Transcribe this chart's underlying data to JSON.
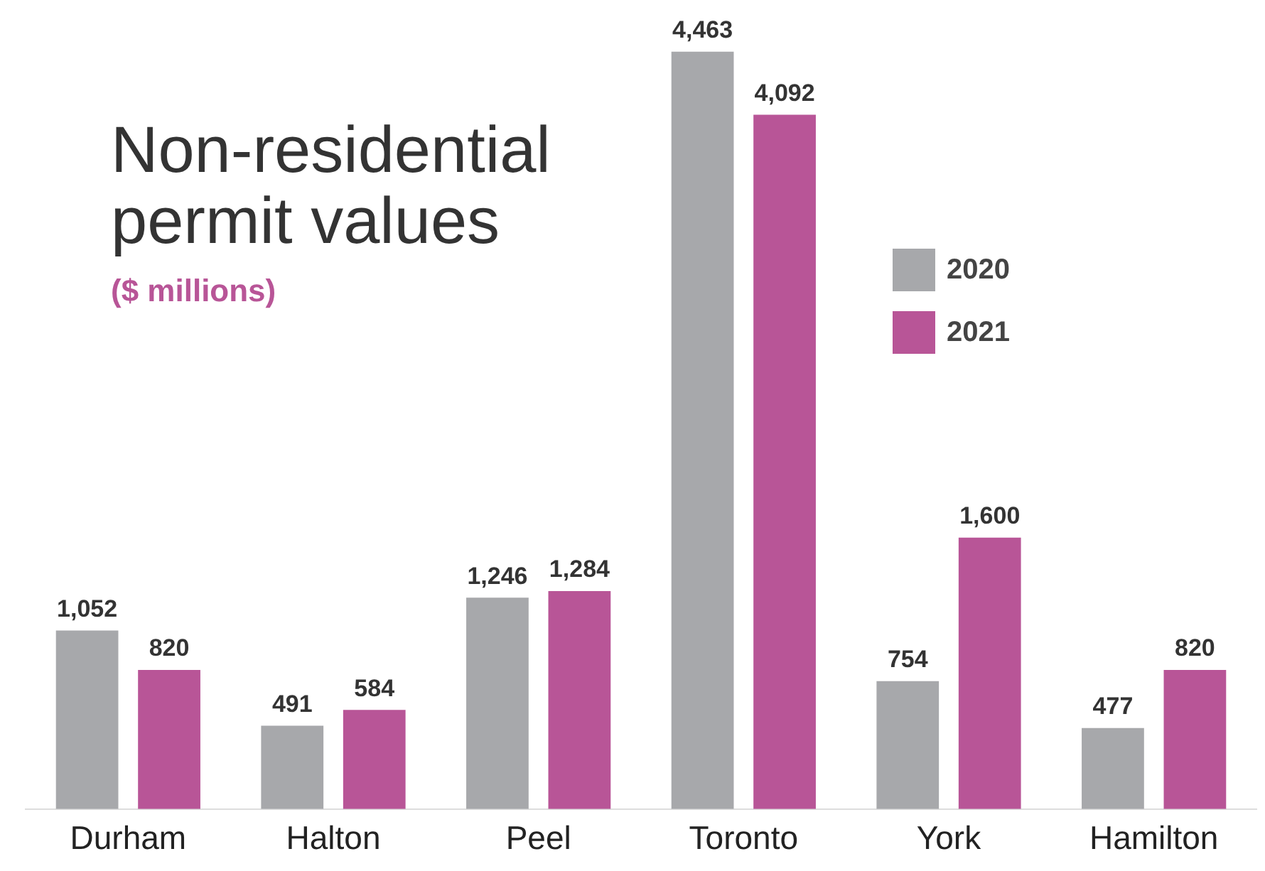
{
  "chart_data": {
    "type": "bar",
    "title": "Non-residential permit values",
    "subtitle": "($ millions)",
    "categories": [
      "Durham",
      "Halton",
      "Peel",
      "Toronto",
      "York",
      "Hamilton"
    ],
    "series": [
      {
        "name": "2020",
        "color": "#a7a8ab",
        "values": [
          1052,
          491,
          1246,
          4463,
          754,
          477
        ],
        "value_labels": [
          "1,052",
          "491",
          "1,246",
          "4,463",
          "754",
          "477"
        ]
      },
      {
        "name": "2021",
        "color": "#b85597",
        "values": [
          820,
          584,
          1284,
          4092,
          1600,
          820
        ],
        "value_labels": [
          "820",
          "584",
          "1,284",
          "4,092",
          "1,600",
          "820"
        ]
      }
    ],
    "legend": "top right",
    "grid": false,
    "relative": false
  }
}
